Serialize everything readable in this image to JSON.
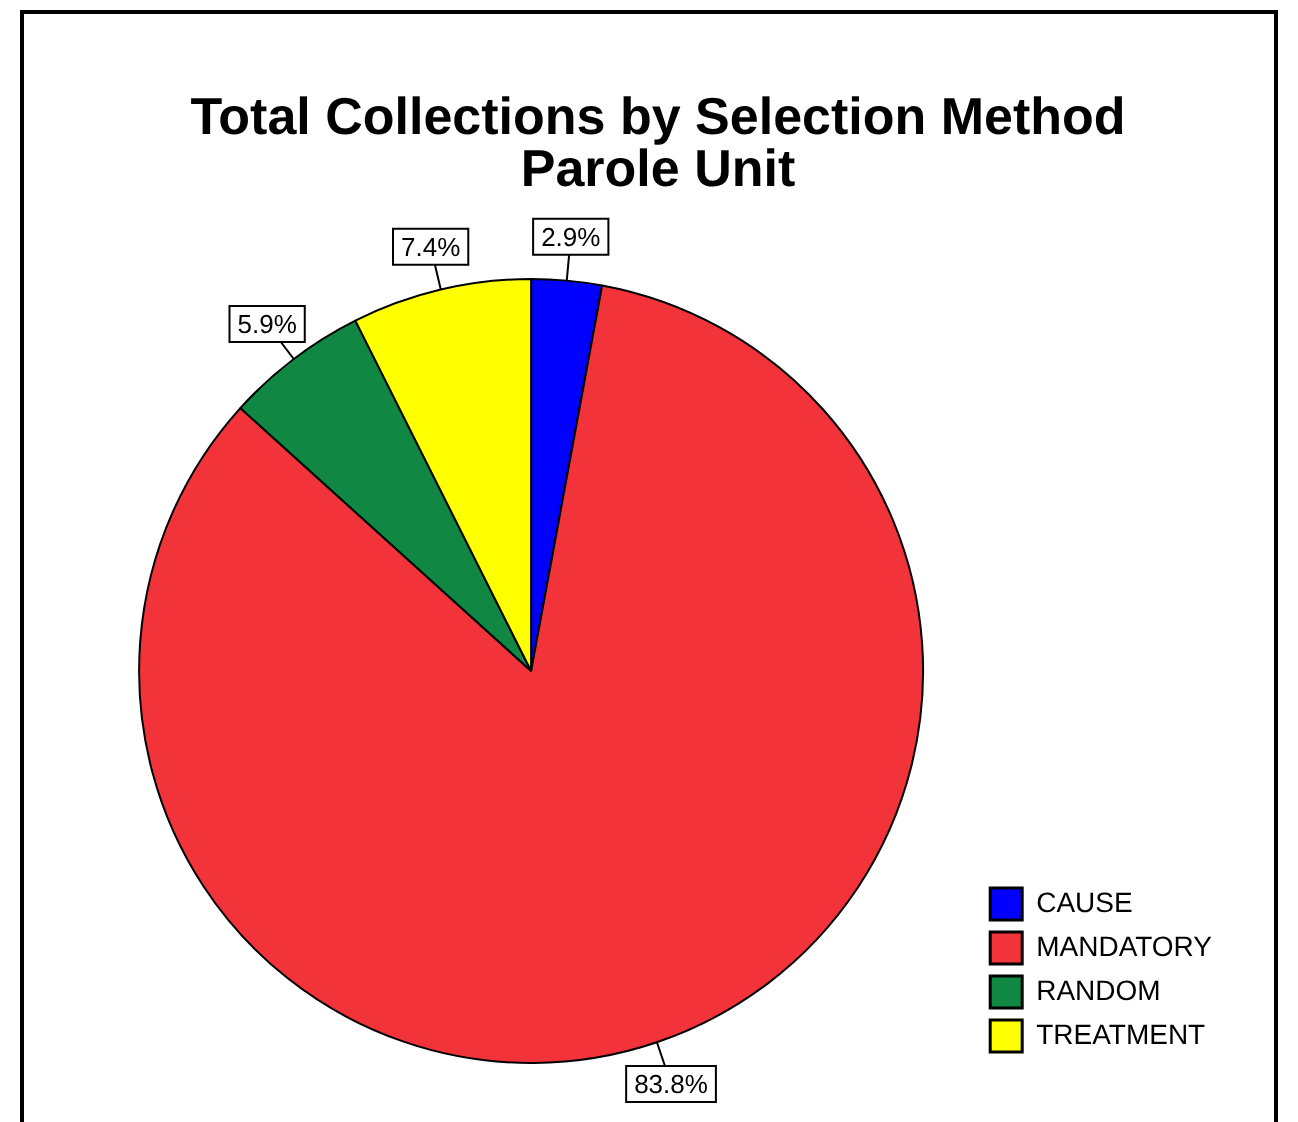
{
  "chart_data": {
    "type": "pie",
    "title": [
      "Total Collections by Selection Method",
      "Parole Unit"
    ],
    "categories": [
      "CAUSE",
      "MANDATORY",
      "RANDOM",
      "TREATMENT"
    ],
    "values": [
      2.9,
      83.8,
      5.9,
      7.4
    ],
    "colors": [
      "#0000ff",
      "#f2333a",
      "#108843",
      "#ffff00"
    ],
    "value_labels": [
      "2.9%",
      "83.8%",
      "5.9%",
      "7.4%"
    ],
    "legend": "right"
  }
}
